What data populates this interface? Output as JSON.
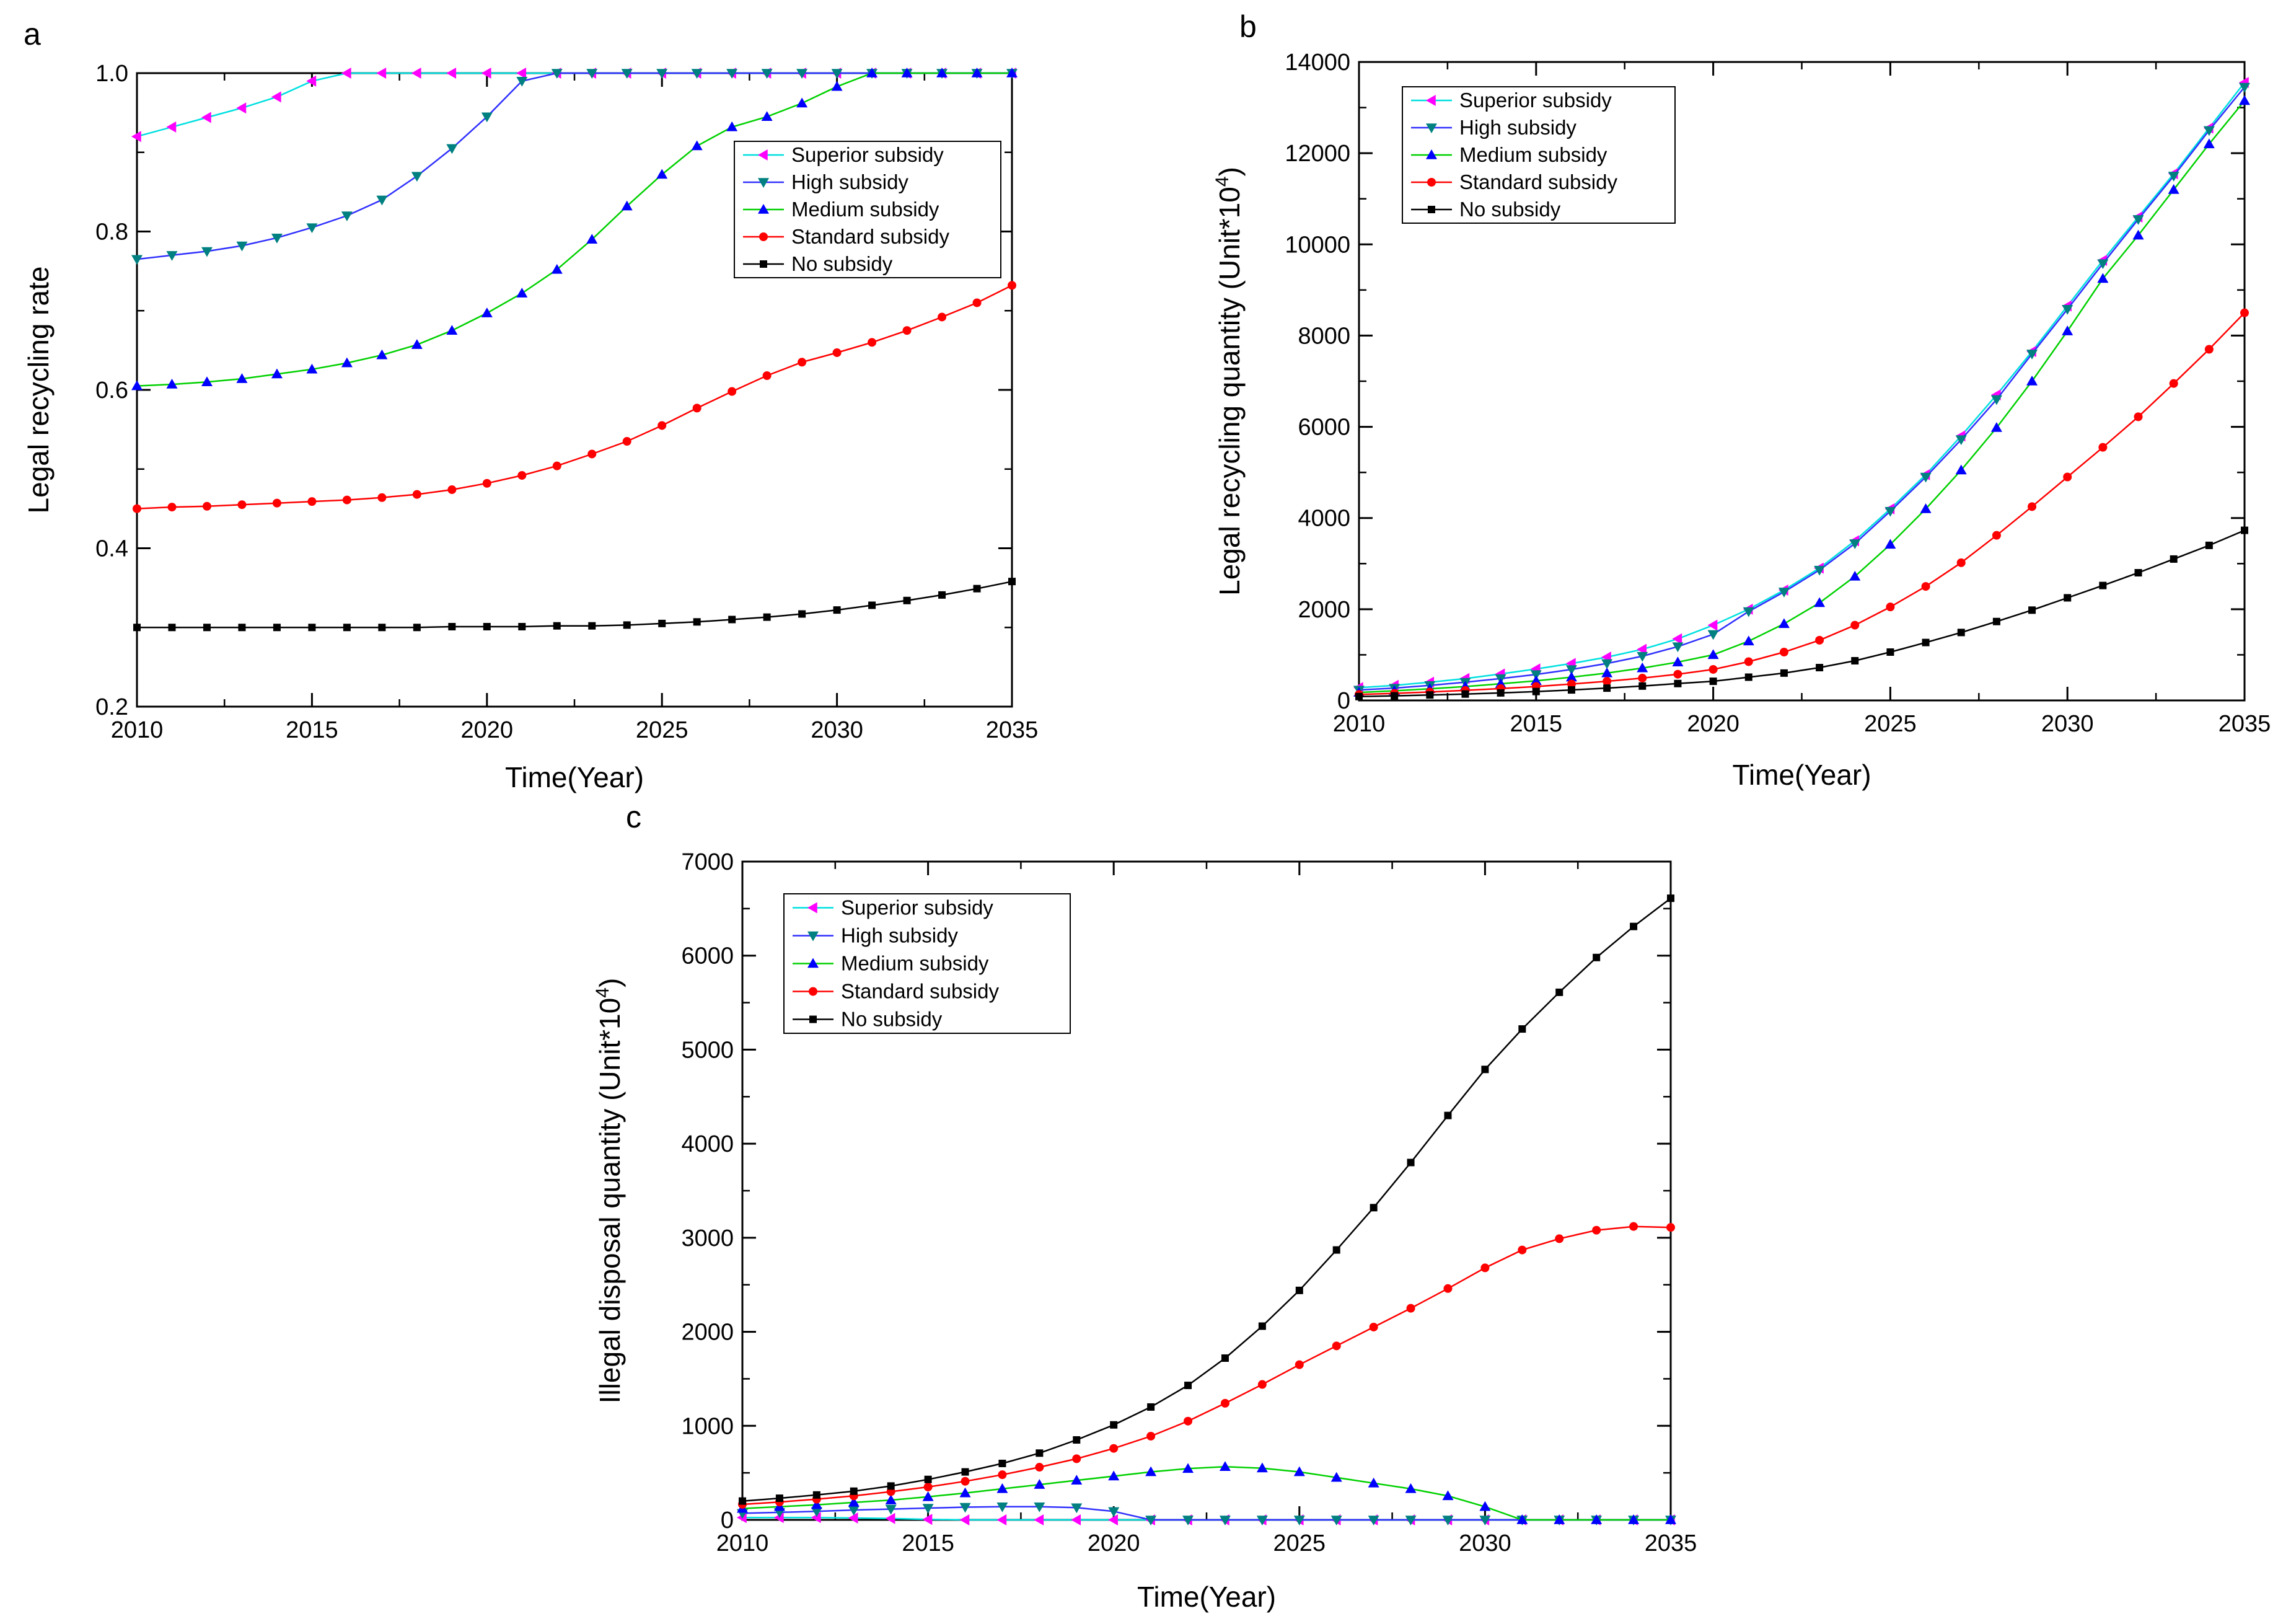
{
  "chart_data": [
    {
      "panel": "a",
      "type": "line",
      "xlabel": "Time(Year)",
      "ylabel": "Legal recycling rate",
      "ylabel_sup": "",
      "ylabel_end": "",
      "xlim": [
        2010,
        2035
      ],
      "ylim": [
        0.2,
        1.0
      ],
      "xticks": [
        2010,
        2015,
        2020,
        2025,
        2030,
        2035
      ],
      "yticks": [
        0.2,
        0.4,
        0.6,
        0.8,
        1.0
      ],
      "ytick_labels": [
        "0.2",
        "0.4",
        "0.6",
        "0.8",
        "1.0"
      ],
      "legend": "top-right",
      "series": [
        {
          "name": "Superior subsidy",
          "color": "#00e0e0",
          "marker_color": "#ff00ff",
          "marker": "triangle-left",
          "x": [
            2010,
            2011,
            2012,
            2013,
            2014,
            2015,
            2016,
            2017,
            2018,
            2019,
            2020,
            2021,
            2022,
            2023,
            2024,
            2025,
            2026,
            2027,
            2028,
            2029,
            2030,
            2031,
            2032,
            2033,
            2034,
            2035
          ],
          "y": [
            0.92,
            0.932,
            0.944,
            0.956,
            0.97,
            0.99,
            1,
            1,
            1,
            1,
            1,
            1,
            1,
            1,
            1,
            1,
            1,
            1,
            1,
            1,
            1,
            1,
            1,
            1,
            1,
            1
          ]
        },
        {
          "name": "High subsidy",
          "color": "#3030ff",
          "marker_color": "#008080",
          "marker": "triangle-down",
          "x": [
            2010,
            2011,
            2012,
            2013,
            2014,
            2015,
            2016,
            2017,
            2018,
            2019,
            2020,
            2021,
            2022,
            2023,
            2024,
            2025,
            2026,
            2027,
            2028,
            2029,
            2030,
            2031,
            2032,
            2033,
            2034,
            2035
          ],
          "y": [
            0.765,
            0.77,
            0.775,
            0.782,
            0.792,
            0.805,
            0.82,
            0.84,
            0.87,
            0.905,
            0.945,
            0.99,
            1,
            1,
            1,
            1,
            1,
            1,
            1,
            1,
            1,
            1,
            1,
            1,
            1,
            1
          ]
        },
        {
          "name": "Medium subsidy",
          "color": "#00d000",
          "marker_color": "#0000ff",
          "marker": "triangle-up",
          "x": [
            2010,
            2011,
            2012,
            2013,
            2014,
            2015,
            2016,
            2017,
            2018,
            2019,
            2020,
            2021,
            2022,
            2023,
            2024,
            2025,
            2026,
            2027,
            2028,
            2029,
            2030,
            2031,
            2032,
            2033,
            2034,
            2035
          ],
          "y": [
            0.605,
            0.607,
            0.61,
            0.614,
            0.62,
            0.626,
            0.634,
            0.644,
            0.657,
            0.675,
            0.697,
            0.722,
            0.752,
            0.79,
            0.832,
            0.872,
            0.908,
            0.932,
            0.945,
            0.962,
            0.983,
            1,
            1,
            1,
            1,
            1
          ]
        },
        {
          "name": "Standard subsidy",
          "color": "#ff0000",
          "marker_color": "#ff0000",
          "marker": "circle",
          "x": [
            2010,
            2011,
            2012,
            2013,
            2014,
            2015,
            2016,
            2017,
            2018,
            2019,
            2020,
            2021,
            2022,
            2023,
            2024,
            2025,
            2026,
            2027,
            2028,
            2029,
            2030,
            2031,
            2032,
            2033,
            2034,
            2035
          ],
          "y": [
            0.45,
            0.452,
            0.453,
            0.455,
            0.457,
            0.459,
            0.461,
            0.464,
            0.468,
            0.474,
            0.482,
            0.492,
            0.504,
            0.519,
            0.535,
            0.555,
            0.577,
            0.598,
            0.618,
            0.635,
            0.647,
            0.66,
            0.675,
            0.692,
            0.71,
            0.732
          ]
        },
        {
          "name": "No subsidy",
          "color": "#000000",
          "marker_color": "#000000",
          "marker": "square",
          "x": [
            2010,
            2011,
            2012,
            2013,
            2014,
            2015,
            2016,
            2017,
            2018,
            2019,
            2020,
            2021,
            2022,
            2023,
            2024,
            2025,
            2026,
            2027,
            2028,
            2029,
            2030,
            2031,
            2032,
            2033,
            2034,
            2035
          ],
          "y": [
            0.3,
            0.3,
            0.3,
            0.3,
            0.3,
            0.3,
            0.3,
            0.3,
            0.3,
            0.301,
            0.301,
            0.301,
            0.302,
            0.302,
            0.303,
            0.305,
            0.307,
            0.31,
            0.313,
            0.317,
            0.322,
            0.328,
            0.334,
            0.341,
            0.349,
            0.358
          ]
        }
      ]
    },
    {
      "panel": "b",
      "type": "line",
      "xlabel": "Time(Year)",
      "ylabel": "Legal recycling quantity  (Unit*10",
      "ylabel_sup": "4",
      "ylabel_end": ")",
      "xlim": [
        2010,
        2035
      ],
      "ylim": [
        0,
        14000
      ],
      "xticks": [
        2010,
        2015,
        2020,
        2025,
        2030,
        2035
      ],
      "yticks": [
        0,
        2000,
        4000,
        6000,
        8000,
        10000,
        12000,
        14000
      ],
      "ytick_labels": [
        "0",
        "2000",
        "4000",
        "6000",
        "8000",
        "10000",
        "12000",
        "14000"
      ],
      "legend": "top-left",
      "series": [
        {
          "name": "Superior subsidy",
          "color": "#00e0e0",
          "marker_color": "#ff00ff",
          "marker": "triangle-left",
          "x": [
            2010,
            2011,
            2012,
            2013,
            2014,
            2015,
            2016,
            2017,
            2018,
            2019,
            2020,
            2021,
            2022,
            2023,
            2024,
            2025,
            2026,
            2027,
            2028,
            2029,
            2030,
            2031,
            2032,
            2033,
            2034,
            2035
          ],
          "y": [
            280,
            330,
            400,
            480,
            580,
            690,
            810,
            950,
            1120,
            1350,
            1650,
            2000,
            2420,
            2900,
            3500,
            4200,
            4950,
            5800,
            6700,
            7650,
            8650,
            9650,
            10600,
            11550,
            12550,
            13550
          ]
        },
        {
          "name": "High subsidy",
          "color": "#3030ff",
          "marker_color": "#008080",
          "marker": "triangle-down",
          "x": [
            2010,
            2011,
            2012,
            2013,
            2014,
            2015,
            2016,
            2017,
            2018,
            2019,
            2020,
            2021,
            2022,
            2023,
            2024,
            2025,
            2026,
            2027,
            2028,
            2029,
            2030,
            2031,
            2032,
            2033,
            2034,
            2035
          ],
          "y": [
            230,
            270,
            330,
            400,
            480,
            570,
            680,
            810,
            970,
            1180,
            1450,
            1950,
            2380,
            2860,
            3440,
            4150,
            4900,
            5720,
            6600,
            7600,
            8580,
            9580,
            10550,
            11500,
            12500,
            13450
          ]
        },
        {
          "name": "Medium subsidy",
          "color": "#00d000",
          "marker_color": "#0000ff",
          "marker": "triangle-up",
          "x": [
            2010,
            2011,
            2012,
            2013,
            2014,
            2015,
            2016,
            2017,
            2018,
            2019,
            2020,
            2021,
            2022,
            2023,
            2024,
            2025,
            2026,
            2027,
            2028,
            2029,
            2030,
            2031,
            2032,
            2033,
            2034,
            2035
          ],
          "y": [
            175,
            210,
            255,
            305,
            365,
            430,
            510,
            600,
            710,
            840,
            1000,
            1300,
            1680,
            2140,
            2720,
            3420,
            4200,
            5050,
            5980,
            7000,
            8100,
            9250,
            10200,
            11200,
            12200,
            13150
          ]
        },
        {
          "name": "Standard subsidy",
          "color": "#ff0000",
          "marker_color": "#ff0000",
          "marker": "circle",
          "x": [
            2010,
            2011,
            2012,
            2013,
            2014,
            2015,
            2016,
            2017,
            2018,
            2019,
            2020,
            2021,
            2022,
            2023,
            2024,
            2025,
            2026,
            2027,
            2028,
            2029,
            2030,
            2031,
            2032,
            2033,
            2034,
            2035
          ],
          "y": [
            130,
            155,
            185,
            220,
            260,
            305,
            360,
            420,
            490,
            575,
            680,
            850,
            1060,
            1320,
            1650,
            2050,
            2500,
            3020,
            3620,
            4250,
            4900,
            5550,
            6220,
            6950,
            7700,
            8500
          ]
        },
        {
          "name": "No subsidy",
          "color": "#000000",
          "marker_color": "#000000",
          "marker": "square",
          "x": [
            2010,
            2011,
            2012,
            2013,
            2014,
            2015,
            2016,
            2017,
            2018,
            2019,
            2020,
            2021,
            2022,
            2023,
            2024,
            2025,
            2026,
            2027,
            2028,
            2029,
            2030,
            2031,
            2032,
            2033,
            2034,
            2035
          ],
          "y": [
            85,
            100,
            120,
            140,
            165,
            195,
            230,
            270,
            315,
            370,
            420,
            510,
            600,
            720,
            870,
            1060,
            1270,
            1490,
            1730,
            1980,
            2250,
            2520,
            2800,
            3100,
            3400,
            3730
          ]
        }
      ]
    },
    {
      "panel": "c",
      "type": "line",
      "xlabel": "Time(Year)",
      "ylabel": "Illegal disposal quantity  (Unit*10",
      "ylabel_sup": "4",
      "ylabel_end": ")",
      "xlim": [
        2010,
        2035
      ],
      "ylim": [
        0,
        7000
      ],
      "xticks": [
        2010,
        2015,
        2020,
        2025,
        2030,
        2035
      ],
      "yticks": [
        0,
        1000,
        2000,
        3000,
        4000,
        5000,
        6000,
        7000
      ],
      "ytick_labels": [
        "0",
        "1000",
        "2000",
        "3000",
        "4000",
        "5000",
        "6000",
        "7000"
      ],
      "legend": "top-left",
      "series": [
        {
          "name": "Superior subsidy",
          "color": "#00e0e0",
          "marker_color": "#ff00ff",
          "marker": "triangle-left",
          "x": [
            2010,
            2011,
            2012,
            2013,
            2014,
            2015,
            2016,
            2017,
            2018,
            2019,
            2020,
            2021,
            2022,
            2023,
            2024,
            2025,
            2026,
            2027,
            2028,
            2029,
            2030,
            2031,
            2032,
            2033,
            2034,
            2035
          ],
          "y": [
            25,
            25,
            25,
            20,
            15,
            5,
            0,
            0,
            0,
            0,
            0,
            0,
            0,
            0,
            0,
            0,
            0,
            0,
            0,
            0,
            0,
            0,
            0,
            0,
            0,
            0
          ]
        },
        {
          "name": "High subsidy",
          "color": "#3030ff",
          "marker_color": "#008080",
          "marker": "triangle-down",
          "x": [
            2010,
            2011,
            2012,
            2013,
            2014,
            2015,
            2016,
            2017,
            2018,
            2019,
            2020,
            2021,
            2022,
            2023,
            2024,
            2025,
            2026,
            2027,
            2028,
            2029,
            2030,
            2031,
            2032,
            2033,
            2034,
            2035
          ],
          "y": [
            70,
            80,
            90,
            105,
            115,
            125,
            135,
            140,
            140,
            130,
            90,
            0,
            0,
            0,
            0,
            0,
            0,
            0,
            0,
            0,
            0,
            0,
            0,
            0,
            0,
            0
          ]
        },
        {
          "name": "Medium subsidy",
          "color": "#00d000",
          "marker_color": "#0000ff",
          "marker": "triangle-up",
          "x": [
            2010,
            2011,
            2012,
            2013,
            2014,
            2015,
            2016,
            2017,
            2018,
            2019,
            2020,
            2021,
            2022,
            2023,
            2024,
            2025,
            2026,
            2027,
            2028,
            2029,
            2030,
            2031,
            2032,
            2033,
            2034,
            2035
          ],
          "y": [
            120,
            140,
            160,
            185,
            210,
            245,
            285,
            330,
            375,
            420,
            465,
            510,
            545,
            565,
            550,
            510,
            450,
            390,
            330,
            255,
            140,
            0,
            0,
            0,
            0,
            0
          ]
        },
        {
          "name": "Standard subsidy",
          "color": "#ff0000",
          "marker_color": "#ff0000",
          "marker": "circle",
          "x": [
            2010,
            2011,
            2012,
            2013,
            2014,
            2015,
            2016,
            2017,
            2018,
            2019,
            2020,
            2021,
            2022,
            2023,
            2024,
            2025,
            2026,
            2027,
            2028,
            2029,
            2030,
            2031,
            2032,
            2033,
            2034,
            2035
          ],
          "y": [
            165,
            190,
            220,
            255,
            300,
            350,
            410,
            480,
            560,
            650,
            760,
            890,
            1050,
            1240,
            1440,
            1650,
            1850,
            2050,
            2250,
            2460,
            2680,
            2870,
            2990,
            3080,
            3120,
            3110
          ]
        },
        {
          "name": "No subsidy",
          "color": "#000000",
          "marker_color": "#000000",
          "marker": "square",
          "x": [
            2010,
            2011,
            2012,
            2013,
            2014,
            2015,
            2016,
            2017,
            2018,
            2019,
            2020,
            2021,
            2022,
            2023,
            2024,
            2025,
            2026,
            2027,
            2028,
            2029,
            2030,
            2031,
            2032,
            2033,
            2034,
            2035
          ],
          "y": [
            200,
            230,
            265,
            305,
            360,
            430,
            510,
            600,
            710,
            850,
            1010,
            1200,
            1430,
            1720,
            2060,
            2440,
            2870,
            3320,
            3800,
            4300,
            4790,
            5220,
            5610,
            5980,
            6310,
            6610
          ]
        }
      ]
    }
  ]
}
